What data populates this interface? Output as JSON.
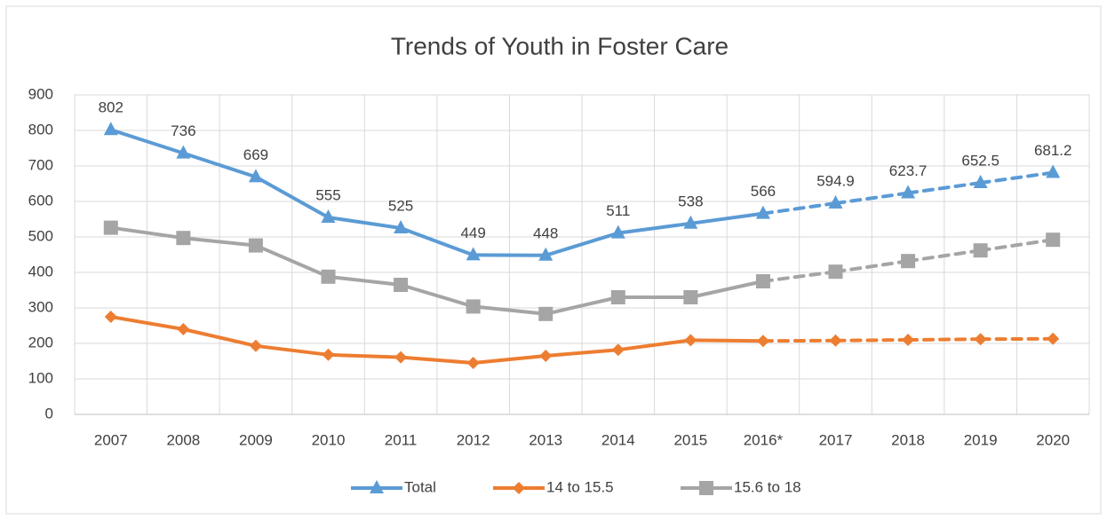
{
  "chart_data": {
    "type": "line",
    "title": "Trends of Youth in Foster Care",
    "categories": [
      "2007",
      "2008",
      "2009",
      "2010",
      "2011",
      "2012",
      "2013",
      "2014",
      "2015",
      "2016*",
      "2017",
      "2018",
      "2019",
      "2020"
    ],
    "series": [
      {
        "name": "Total",
        "color": "#5b9bd5",
        "marker": "triangle",
        "dashed_from": "2016*",
        "data_labels": true,
        "values": [
          802,
          736,
          669,
          555,
          525,
          449,
          448,
          511,
          538,
          566,
          594.9,
          623.7,
          652.5,
          681.2
        ]
      },
      {
        "name": "14 to 15.5",
        "color": "#ed7d31",
        "marker": "diamond",
        "dashed_from": "2016*",
        "data_labels": false,
        "values": [
          275,
          240,
          193,
          168,
          161,
          145,
          165,
          182,
          209,
          207,
          208,
          210,
          212,
          213
        ]
      },
      {
        "name": "15.6 to 18",
        "color": "#a5a5a5",
        "marker": "square",
        "dashed_from": "2016*",
        "data_labels": false,
        "values": [
          526,
          497,
          476,
          388,
          365,
          304,
          283,
          330,
          330,
          375,
          402,
          432,
          462,
          492
        ]
      }
    ],
    "ylim": [
      0,
      900
    ],
    "yticks": [
      0,
      100,
      200,
      300,
      400,
      500,
      600,
      700,
      800,
      900
    ],
    "grid": true,
    "legend": "bottom"
  }
}
